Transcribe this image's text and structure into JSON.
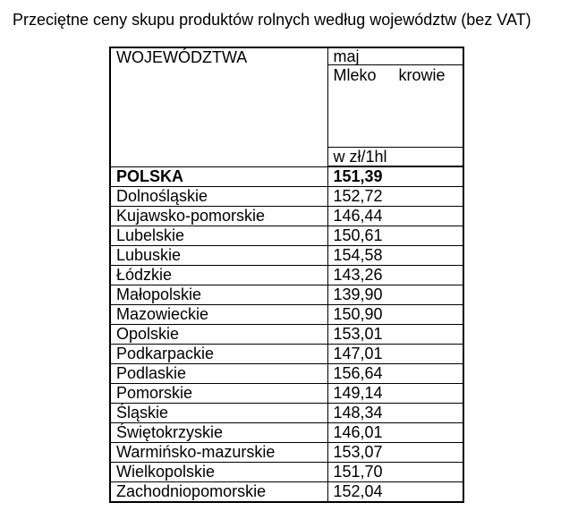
{
  "title": "Przeciętne ceny skupu produktów rolnych według województw (bez VAT)",
  "table": {
    "header": {
      "regions_label": "WOJEWÓDZTWA",
      "period_label": "maj",
      "product_label": "Mleko krowie",
      "unit_label": "w zł/1hl"
    },
    "summary": {
      "label": "POLSKA",
      "value": "151,39"
    },
    "rows": [
      {
        "label": "Dolnośląskie",
        "value": "152,72"
      },
      {
        "label": "Kujawsko-pomorskie",
        "value": "146,44"
      },
      {
        "label": "Lubelskie",
        "value": "150,61"
      },
      {
        "label": "Lubuskie",
        "value": "154,58"
      },
      {
        "label": "Łódzkie",
        "value": "143,26"
      },
      {
        "label": "Małopolskie",
        "value": "139,90"
      },
      {
        "label": "Mazowieckie",
        "value": "150,90"
      },
      {
        "label": "Opolskie",
        "value": "153,01"
      },
      {
        "label": "Podkarpackie",
        "value": "147,01"
      },
      {
        "label": "Podlaskie",
        "value": "156,64"
      },
      {
        "label": "Pomorskie",
        "value": "149,14"
      },
      {
        "label": "Śląskie",
        "value": "148,34"
      },
      {
        "label": "Świętokrzyskie",
        "value": "146,01"
      },
      {
        "label": "Warmińsko-mazurskie",
        "value": "153,07"
      },
      {
        "label": "Wielkopolskie",
        "value": "151,70"
      },
      {
        "label": "Zachodniopomorskie",
        "value": "152,04"
      }
    ]
  }
}
